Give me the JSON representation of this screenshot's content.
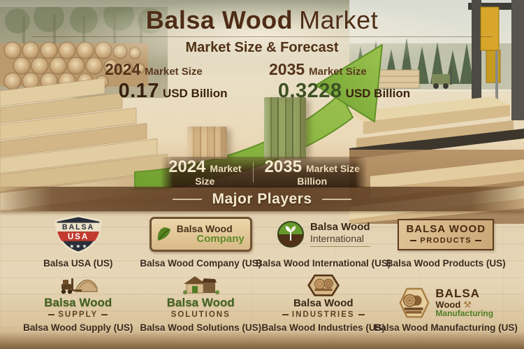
{
  "header": {
    "title_bold": "Balsa Wood",
    "title_light": "Market",
    "subtitle": "Market Size & Forecast"
  },
  "stats": {
    "y2024": {
      "year": "2024",
      "label": "Market Size",
      "value": "0.17",
      "unit": "USD Billion"
    },
    "y2035": {
      "year": "2035",
      "label": "Market Size",
      "value": "0.3228",
      "unit": "USD Billion"
    }
  },
  "chart_data": {
    "type": "bar",
    "title": "Balsa Wood Market — Market Size & Forecast",
    "categories": [
      "2024",
      "2035"
    ],
    "values": [
      0.17,
      0.3228
    ],
    "unit": "USD Billion",
    "ylabel": "Market Size (USD Billion)",
    "ylim": [
      0,
      0.35
    ],
    "bar_colors": [
      "#cfae7e",
      "#84915a"
    ],
    "trend": "up",
    "trend_arrow_color": "#85b23f",
    "annotations": [
      "2024 Market Size 0.17 USD Billion",
      "2035 Market Size 0.3228 USD Billion"
    ]
  },
  "axis_band": {
    "left": {
      "year": "2024",
      "line1": "Market",
      "line2": "Size"
    },
    "right": {
      "year": "2035",
      "line1": "Market Size",
      "line2": "Billion"
    }
  },
  "major_players": {
    "heading": "Major Players",
    "row1": [
      {
        "name": "Balsa USA (US)",
        "logo_line1": "BALSA",
        "logo_line2": "USA",
        "stars": "★ ★ ★"
      },
      {
        "name": "Balsa Wood Company (US)",
        "logo_line1": "Balsa Wood",
        "logo_line2": "Company"
      },
      {
        "name": "Balsa Wood International (US)",
        "logo_line1": "Balsa Wood",
        "logo_line2": "International"
      },
      {
        "name": "Balsa Wood Products (US)",
        "logo_line1": "BALSA WOOD",
        "logo_line2": "PRODUCTS"
      }
    ],
    "row2": [
      {
        "name": "Balsa Wood Supply (US)",
        "logo_line1": "Balsa Wood",
        "logo_line2": "SUPPLY"
      },
      {
        "name": "Balsa Wood Solutions (US)",
        "logo_line1": "Balsa Wood",
        "logo_line2": "SOLUTIONS"
      },
      {
        "name": "Balsa Wood Industries (US)",
        "logo_line1": "Balsa Wood",
        "logo_line2": "INDUSTRIES"
      },
      {
        "name": "Balsa Wood Manufacturing (US)",
        "logo_line1": "BALSA",
        "logo_line2": "Wood",
        "logo_line3": "Manufacturing",
        "axe_glyph": "⚒"
      }
    ]
  },
  "colors": {
    "title": "#4e2c15",
    "accent_green": "#85b23f",
    "value_2024": "#3a2110",
    "value_2035": "#3d5124",
    "band_text": "#f3e5c5"
  }
}
